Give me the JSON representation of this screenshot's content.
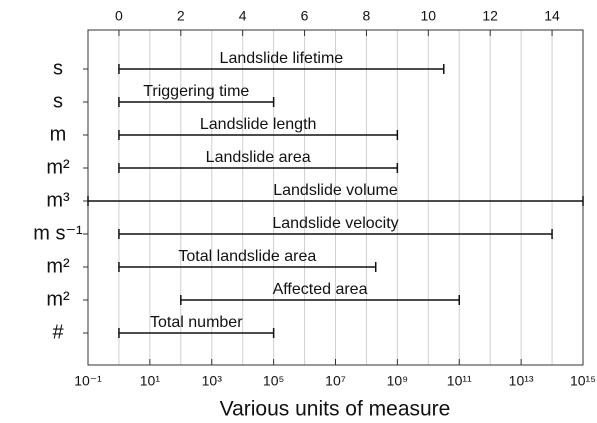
{
  "chart_data": {
    "type": "range",
    "xlabel": "Various units of measure",
    "xlim": [
      -1,
      15
    ],
    "xticks": [
      0,
      2,
      4,
      6,
      8,
      10,
      12,
      14
    ],
    "x2ticks": [
      {
        "value": -1,
        "label": "10⁻¹"
      },
      {
        "value": 1,
        "label": "10¹"
      },
      {
        "value": 3,
        "label": "10³"
      },
      {
        "value": 5,
        "label": "10⁵"
      },
      {
        "value": 7,
        "label": "10⁷"
      },
      {
        "value": 9,
        "label": "10⁹"
      },
      {
        "value": 11,
        "label": "10¹¹"
      },
      {
        "value": 13,
        "label": "10¹³"
      },
      {
        "value": 15,
        "label": "10¹⁵"
      }
    ],
    "grid": true,
    "color": "#111111",
    "rows": [
      {
        "unit": "s",
        "label": "Landslide lifetime",
        "low": 0,
        "high": 10.5
      },
      {
        "unit": "s",
        "label": "Triggering time",
        "low": 0,
        "high": 5
      },
      {
        "unit": "m",
        "label": "Landslide length",
        "low": 0,
        "high": 9
      },
      {
        "unit": "m²",
        "label": "Landslide area",
        "low": 0,
        "high": 9
      },
      {
        "unit": "m³",
        "label": "Landslide volume",
        "low": -1,
        "high": 15
      },
      {
        "unit": "m s⁻¹",
        "label": "Landslide velocity",
        "low": 0,
        "high": 14
      },
      {
        "unit": "m²",
        "label": "Total landslide area",
        "low": 0,
        "high": 8.3
      },
      {
        "unit": "m²",
        "label": "Affected area",
        "low": 2,
        "high": 11
      },
      {
        "unit": "#",
        "label": "Total number",
        "low": 0,
        "high": 5
      }
    ]
  }
}
